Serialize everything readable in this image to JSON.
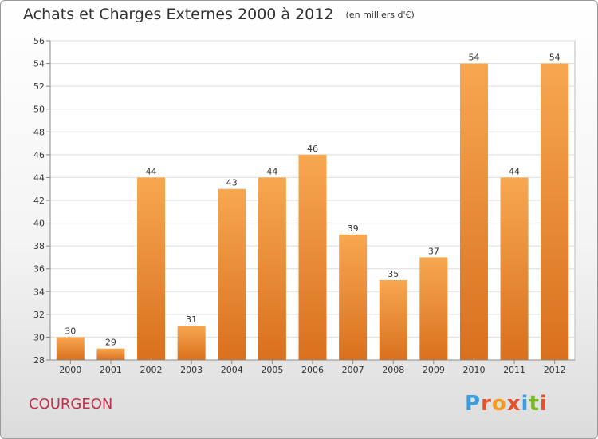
{
  "header": {
    "title": "Achats et Charges Externes 2000 à 2012",
    "unit": "(en milliers d'€)"
  },
  "commune": "COURGEON",
  "logo": {
    "text": "Proxiti",
    "letter_colors": [
      "#3a9de0",
      "#e8502a",
      "#f39a1e",
      "#e8502a",
      "#3a9de0",
      "#7ab62a",
      "#e8502a"
    ]
  },
  "colors": {
    "bar_top": "#f7a750",
    "bar_bottom": "#d9701e",
    "grid": "#dddddd",
    "axis": "#888888",
    "text": "#333333"
  },
  "chart_data": {
    "type": "bar",
    "categories": [
      "2000",
      "2001",
      "2002",
      "2003",
      "2004",
      "2005",
      "2006",
      "2007",
      "2008",
      "2009",
      "2010",
      "2011",
      "2012"
    ],
    "values": [
      30,
      29,
      44,
      31,
      43,
      44,
      46,
      39,
      35,
      37,
      54,
      44,
      54
    ],
    "title": "Achats et Charges Externes 2000 à 2012",
    "xlabel": "",
    "ylabel": "",
    "ylim": [
      28,
      56
    ],
    "yticks": [
      28,
      30,
      32,
      34,
      36,
      38,
      40,
      42,
      44,
      46,
      48,
      50,
      52,
      54,
      56
    ],
    "grid": true,
    "legend": "none"
  }
}
